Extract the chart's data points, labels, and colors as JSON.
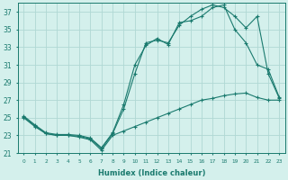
{
  "xlabel": "Humidex (Indice chaleur)",
  "x": [
    0,
    1,
    2,
    3,
    4,
    5,
    6,
    7,
    8,
    9,
    10,
    11,
    12,
    13,
    14,
    15,
    16,
    17,
    18,
    19,
    20,
    21,
    22,
    23
  ],
  "line1": [
    25.0,
    24.0,
    23.2,
    23.0,
    23.0,
    22.8,
    22.5,
    21.3,
    23.0,
    23.5,
    24.0,
    24.5,
    25.0,
    25.5,
    26.0,
    26.5,
    27.0,
    27.2,
    27.5,
    27.7,
    27.8,
    27.3,
    27.0,
    27.0
  ],
  "line2": [
    25.1,
    24.1,
    23.2,
    23.0,
    23.0,
    22.9,
    22.6,
    21.5,
    23.2,
    26.0,
    30.0,
    33.5,
    33.8,
    33.5,
    35.5,
    36.5,
    37.3,
    37.8,
    37.5,
    36.5,
    35.2,
    36.5,
    30.0,
    27.2
  ],
  "line3": [
    25.2,
    24.2,
    23.3,
    23.1,
    23.1,
    23.0,
    22.7,
    21.6,
    23.3,
    26.5,
    31.0,
    33.2,
    34.0,
    33.3,
    35.8,
    36.0,
    36.5,
    37.5,
    37.8,
    35.0,
    33.5,
    31.0,
    30.5,
    27.3
  ],
  "line_color": "#1a7a6e",
  "bg_color": "#d4f0ec",
  "grid_color": "#b0d8d4",
  "ylim": [
    21,
    38
  ],
  "yticks": [
    21,
    23,
    25,
    27,
    29,
    31,
    33,
    35,
    37
  ],
  "xticks": [
    0,
    1,
    2,
    3,
    4,
    5,
    6,
    7,
    8,
    9,
    10,
    11,
    12,
    13,
    14,
    15,
    16,
    17,
    18,
    19,
    20,
    21,
    22,
    23
  ]
}
